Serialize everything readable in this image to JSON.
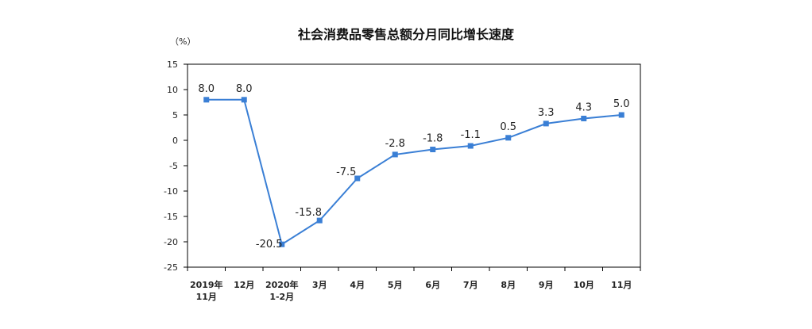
{
  "chart_data": {
    "type": "line",
    "title": "社会消费品零售总额分月同比增长速度",
    "y_unit": "（%）",
    "categories": [
      [
        "2019年",
        "11月"
      ],
      [
        "12月"
      ],
      [
        "2020年",
        "1-2月"
      ],
      [
        "3月"
      ],
      [
        "4月"
      ],
      [
        "5月"
      ],
      [
        "6月"
      ],
      [
        "7月"
      ],
      [
        "8月"
      ],
      [
        "9月"
      ],
      [
        "10月"
      ],
      [
        "11月"
      ]
    ],
    "values": [
      8.0,
      8.0,
      -20.5,
      -15.8,
      -7.5,
      -2.8,
      -1.8,
      -1.1,
      0.5,
      3.3,
      4.3,
      5.0
    ],
    "data_labels": [
      "8.0",
      "8.0",
      "-20.5",
      "-15.8",
      "-7.5",
      "-2.8",
      "-1.8",
      "-1.1",
      "0.5",
      "3.3",
      "4.3",
      "5.0"
    ],
    "ylim": [
      -25,
      15
    ],
    "yticks": [
      15,
      10,
      5,
      0,
      -5,
      -10,
      -15,
      -20,
      -25
    ],
    "grid": false,
    "legend": "none",
    "colors": {
      "line": "#3a7fd5",
      "axis": "#000000",
      "text": "#222222"
    }
  }
}
